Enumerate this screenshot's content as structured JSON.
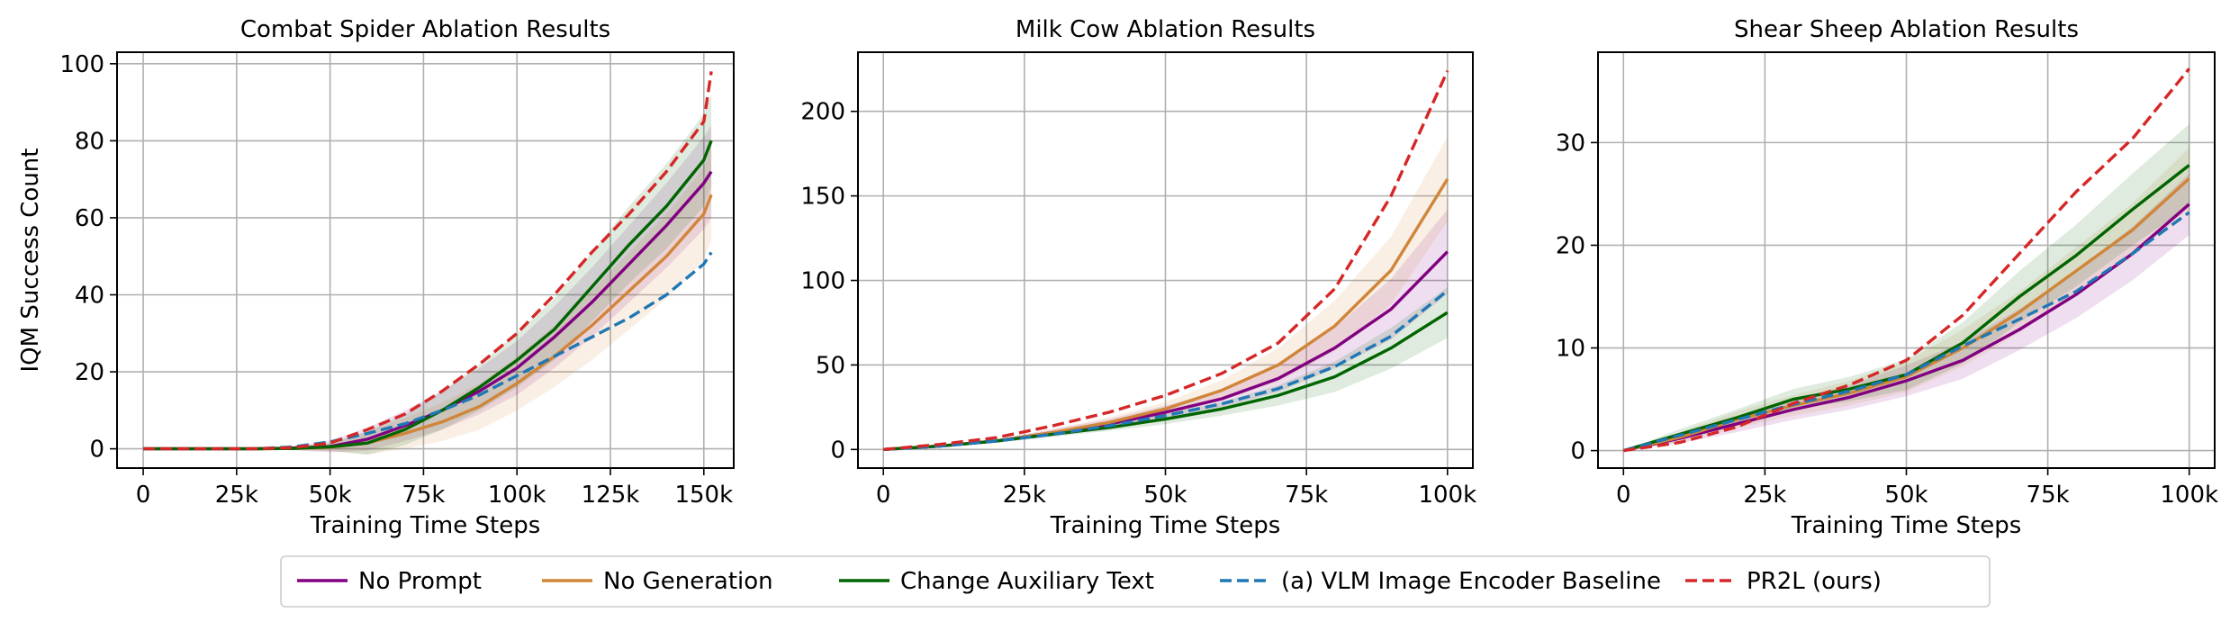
{
  "chart_data": [
    {
      "type": "line",
      "title": "Combat Spider Ablation Results",
      "xlabel": "Training Time Steps",
      "ylabel": "IQM Success Count",
      "xlim": [
        -7000,
        158000
      ],
      "ylim": [
        -5,
        103
      ],
      "xticks": [
        0,
        25000,
        50000,
        75000,
        100000,
        125000,
        150000
      ],
      "xticklabels": [
        "0",
        "25k",
        "50k",
        "75k",
        "100k",
        "125k",
        "150k"
      ],
      "yticks": [
        0,
        20,
        40,
        60,
        80,
        100
      ],
      "yticklabels": [
        "0",
        "20",
        "40",
        "60",
        "80",
        "100"
      ],
      "grid": true,
      "x": [
        0,
        10000,
        20000,
        30000,
        40000,
        50000,
        60000,
        70000,
        80000,
        90000,
        100000,
        110000,
        120000,
        130000,
        140000,
        150000,
        152000
      ],
      "series": [
        {
          "name": "No Prompt",
          "y": [
            0,
            0,
            0,
            0,
            0.2,
            0.6,
            2.5,
            6,
            10,
            15,
            21,
            29,
            38,
            48,
            58,
            69,
            72
          ],
          "band": [
            0,
            0,
            0,
            0,
            0.5,
            1.5,
            3,
            4,
            5,
            6,
            7,
            8,
            9,
            10,
            11,
            12,
            12
          ]
        },
        {
          "name": "No Generation",
          "y": [
            0,
            0,
            0,
            0,
            0.1,
            0.4,
            1.5,
            4,
            7,
            11,
            17,
            24,
            32,
            41,
            50,
            61,
            66
          ],
          "band": [
            0,
            0,
            0,
            0,
            0.5,
            1,
            3,
            4,
            5,
            6,
            7,
            8,
            9,
            10,
            11,
            12,
            12
          ]
        },
        {
          "name": "Change Auxiliary Text",
          "y": [
            0,
            0,
            0,
            0,
            0.1,
            0.5,
            1.5,
            5,
            10,
            16,
            23,
            31,
            42,
            53,
            63,
            75,
            80
          ],
          "band": [
            0,
            0,
            0,
            0,
            0.5,
            1,
            3,
            4,
            5,
            6,
            7,
            8,
            9,
            10,
            11,
            12,
            12
          ]
        },
        {
          "name": "(a) VLM Image Encoder Baseline",
          "y": [
            0,
            0,
            0,
            0,
            0.5,
            1.8,
            4,
            6.5,
            10,
            14,
            19,
            24,
            29,
            34,
            40,
            48,
            51
          ],
          "band": [
            0,
            0,
            0,
            0,
            0,
            0,
            0,
            0,
            0,
            0,
            0,
            0,
            0,
            0,
            0,
            0,
            0
          ]
        },
        {
          "name": "PR2L (ours)",
          "y": [
            0,
            0,
            0,
            0,
            0.3,
            1.5,
            5,
            9,
            15,
            22,
            30,
            40,
            51,
            61,
            72,
            85,
            98
          ],
          "band": [
            0,
            0,
            0,
            0,
            0,
            0,
            0,
            0,
            0,
            0,
            0,
            0,
            0,
            0,
            0,
            0,
            0
          ]
        }
      ]
    },
    {
      "type": "line",
      "title": "Milk Cow Ablation Results",
      "xlabel": "Training Time Steps",
      "ylabel": "",
      "xlim": [
        -4500,
        104500
      ],
      "ylim": [
        -11,
        235
      ],
      "xticks": [
        0,
        25000,
        50000,
        75000,
        100000
      ],
      "xticklabels": [
        "0",
        "25k",
        "50k",
        "75k",
        "100k"
      ],
      "yticks": [
        0,
        50,
        100,
        150,
        200
      ],
      "yticklabels": [
        "0",
        "50",
        "100",
        "150",
        "200"
      ],
      "grid": true,
      "x": [
        0,
        10000,
        20000,
        30000,
        40000,
        50000,
        60000,
        70000,
        80000,
        90000,
        100000
      ],
      "series": [
        {
          "name": "No Prompt",
          "y": [
            0,
            2,
            5,
            10,
            15,
            22,
            30,
            42,
            60,
            83,
            117
          ],
          "band": [
            0,
            0.5,
            1,
            2,
            3,
            4,
            5,
            8,
            12,
            18,
            25
          ]
        },
        {
          "name": "No Generation",
          "y": [
            0,
            2,
            5,
            10,
            16,
            24,
            35,
            50,
            73,
            106,
            160
          ],
          "band": [
            0,
            0.5,
            1,
            2,
            3,
            4,
            6,
            10,
            15,
            20,
            25
          ]
        },
        {
          "name": "Change Auxiliary Text",
          "y": [
            0,
            2,
            5,
            9,
            13,
            18,
            24,
            32,
            43,
            60,
            81
          ],
          "band": [
            0,
            0.5,
            1,
            1.5,
            2,
            3,
            4,
            6,
            9,
            12,
            15
          ]
        },
        {
          "name": "(a) VLM Image Encoder Baseline",
          "y": [
            0,
            2,
            5,
            9,
            14,
            20,
            27,
            36,
            49,
            67,
            94
          ],
          "band": [
            0,
            0,
            0,
            0,
            0,
            0,
            0,
            0,
            0,
            0,
            0
          ]
        },
        {
          "name": "PR2L (ours)",
          "y": [
            0,
            3,
            7,
            14,
            22,
            32,
            45,
            63,
            95,
            150,
            224
          ],
          "band": [
            0,
            0,
            0,
            0,
            0,
            0,
            0,
            0,
            0,
            0,
            0
          ]
        }
      ]
    },
    {
      "type": "line",
      "title": "Shear Sheep Ablation Results",
      "xlabel": "Training Time Steps",
      "ylabel": "",
      "xlim": [
        -4500,
        104500
      ],
      "ylim": [
        -1.7,
        38.8
      ],
      "xticks": [
        0,
        25000,
        50000,
        75000,
        100000
      ],
      "xticklabels": [
        "0",
        "25k",
        "50k",
        "75k",
        "100k"
      ],
      "yticks": [
        0,
        10,
        20,
        30
      ],
      "yticklabels": [
        "0",
        "10",
        "20",
        "30"
      ],
      "grid": true,
      "x": [
        0,
        10000,
        20000,
        30000,
        40000,
        50000,
        60000,
        70000,
        80000,
        90000,
        100000
      ],
      "series": [
        {
          "name": "No Prompt",
          "y": [
            0,
            1.2,
            2.6,
            4.0,
            5.2,
            6.8,
            8.8,
            11.8,
            15.2,
            19.2,
            24.0
          ],
          "band": [
            0,
            0.5,
            0.8,
            1,
            1.2,
            1.5,
            1.8,
            2,
            2.3,
            2.6,
            3
          ]
        },
        {
          "name": "No Generation",
          "y": [
            0,
            1.3,
            3.0,
            4.4,
            5.6,
            7.2,
            10.0,
            13.5,
            17.5,
            21.5,
            26.5
          ],
          "band": [
            0,
            0.5,
            0.8,
            1,
            1.2,
            1.5,
            1.8,
            2,
            2.3,
            2.6,
            3
          ]
        },
        {
          "name": "Change Auxiliary Text",
          "y": [
            0,
            1.6,
            3.2,
            5.0,
            6.0,
            7.4,
            10.5,
            15.0,
            19.0,
            23.5,
            27.8
          ],
          "band": [
            0,
            0.5,
            0.8,
            1,
            1.2,
            1.5,
            2,
            2.5,
            3,
            3.5,
            4
          ]
        },
        {
          "name": "(a) VLM Image Encoder Baseline",
          "y": [
            0,
            1.5,
            3.0,
            4.5,
            5.8,
            7.4,
            10.2,
            12.8,
            15.5,
            19.2,
            23.2
          ],
          "band": [
            0,
            0,
            0,
            0,
            0,
            0,
            0,
            0,
            0,
            0,
            0
          ]
        },
        {
          "name": "PR2L (ours)",
          "y": [
            0,
            0.8,
            2.3,
            4.6,
            6.4,
            8.8,
            13.2,
            19.2,
            25.2,
            30.4,
            37.2
          ],
          "band": [
            0,
            0,
            0,
            0,
            0,
            0,
            0,
            0,
            0,
            0,
            0
          ]
        }
      ]
    }
  ],
  "legend": {
    "placement": "bottom-center",
    "entries": [
      {
        "label": "No Prompt",
        "color": "#800080",
        "dash": "solid"
      },
      {
        "label": "No Generation",
        "color": "#d08538",
        "dash": "solid"
      },
      {
        "label": "Change Auxiliary Text",
        "color": "#006400",
        "dash": "solid"
      },
      {
        "label": "(a) VLM Image Encoder Baseline",
        "color": "#1f77b4",
        "dash": "dashed"
      },
      {
        "label": "PR2L (ours)",
        "color": "#d62728",
        "dash": "dashed"
      }
    ]
  }
}
